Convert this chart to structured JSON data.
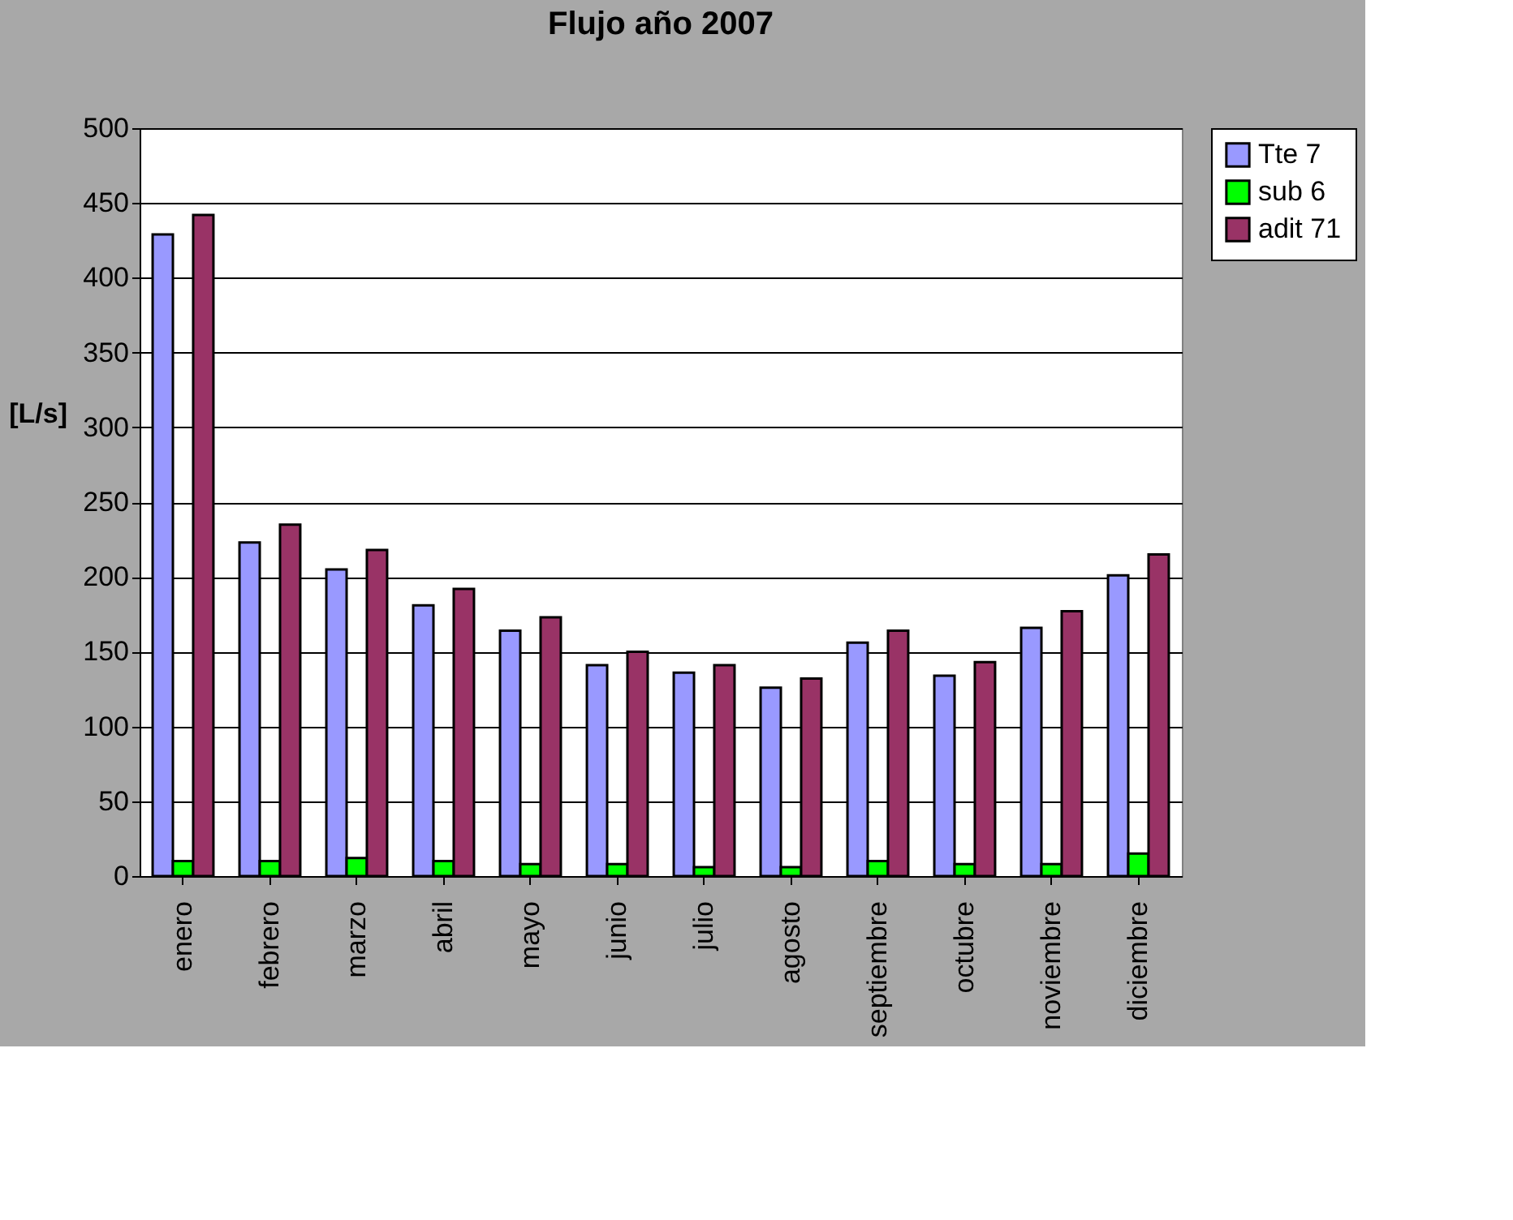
{
  "chart_data": {
    "type": "bar",
    "title": "Flujo año 2007",
    "ylabel": "[L/s]",
    "categories": [
      "enero",
      "febrero",
      "marzo",
      "abril",
      "mayo",
      "junio",
      "julio",
      "agosto",
      "septiembre",
      "octubre",
      "noviembre",
      "diciembre"
    ],
    "series": [
      {
        "name": "Tte 7",
        "color": "#9999ff",
        "values": [
          429,
          223,
          205,
          181,
          164,
          141,
          136,
          126,
          156,
          134,
          166,
          201
        ]
      },
      {
        "name": "sub 6",
        "color": "#00ff00",
        "values": [
          10,
          10,
          12,
          10,
          8,
          8,
          6,
          6,
          10,
          8,
          8,
          15
        ]
      },
      {
        "name": "adit 71",
        "color": "#993366",
        "values": [
          442,
          235,
          218,
          192,
          173,
          150,
          141,
          132,
          164,
          143,
          177,
          215
        ]
      }
    ],
    "ylim": [
      0,
      500
    ],
    "yticks": [
      0,
      50,
      100,
      150,
      200,
      250,
      300,
      350,
      400,
      450,
      500
    ],
    "grid": "y",
    "legend": "right"
  }
}
